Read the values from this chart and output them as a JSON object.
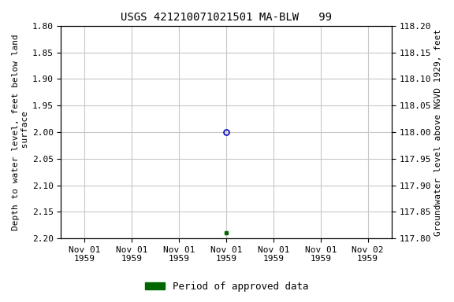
{
  "title": "USGS 421210071021501 MA-BLW   99",
  "ylabel_left": "Depth to water level, feet below land\n surface",
  "ylabel_right": "Groundwater level above NGVD 1929, feet",
  "ylim_left": [
    1.8,
    2.2
  ],
  "ylim_right": [
    117.8,
    118.2
  ],
  "yticks_left": [
    1.8,
    1.85,
    1.9,
    1.95,
    2.0,
    2.05,
    2.1,
    2.15,
    2.2
  ],
  "yticks_right": [
    117.8,
    117.85,
    117.9,
    117.95,
    118.0,
    118.05,
    118.1,
    118.15,
    118.2
  ],
  "data_point_open_depth": 2.0,
  "data_point_green_depth": 2.19,
  "open_marker_color": "#0000bb",
  "green_marker_color": "#006600",
  "background_color": "#ffffff",
  "grid_color": "#c8c8c8",
  "legend_label": "Period of approved data",
  "legend_color": "#006600",
  "title_fontsize": 10,
  "axis_label_fontsize": 8,
  "tick_fontsize": 8,
  "xtick_labels": [
    "Nov 01\n1959",
    "Nov 01\n1959",
    "Nov 01\n1959",
    "Nov 01\n1959",
    "Nov 01\n1959",
    "Nov 01\n1959",
    "Nov 02\n1959"
  ]
}
